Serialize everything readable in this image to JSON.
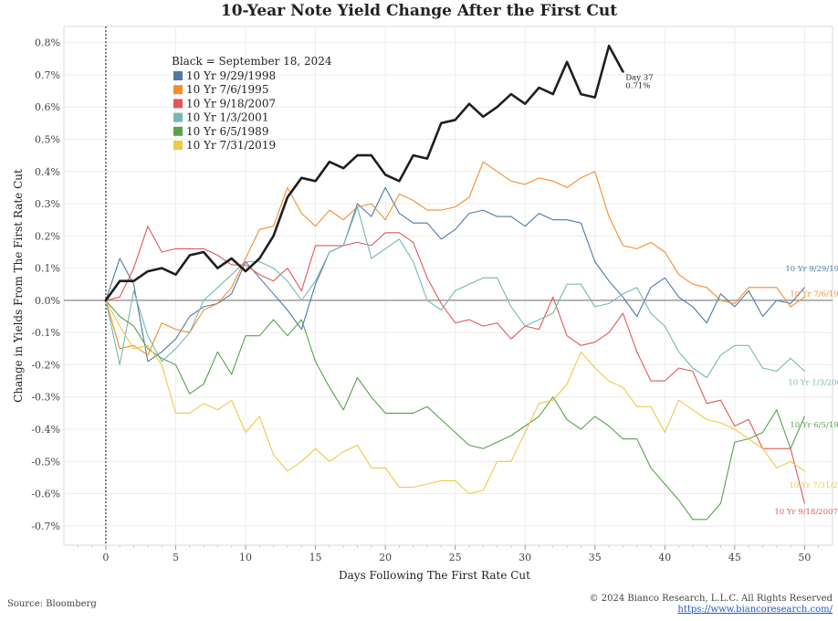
{
  "chart_data": {
    "type": "line",
    "title": "10-Year Note Yield Change After the First Cut",
    "xlabel": "Days Following The First Rate Cut",
    "ylabel": "Change in Yields From The First Rate Cut",
    "xlim": [
      -3,
      52
    ],
    "ylim": [
      -0.76,
      0.85
    ],
    "x_ticks": [
      0,
      5,
      10,
      15,
      20,
      25,
      30,
      35,
      40,
      45,
      50
    ],
    "y_ticks": [
      -0.7,
      -0.6,
      -0.5,
      -0.4,
      -0.3,
      -0.2,
      -0.1,
      0.0,
      0.1,
      0.2,
      0.3,
      0.4,
      0.5,
      0.6,
      0.7,
      0.8
    ],
    "y_tick_labels": [
      "-0.7%",
      "-0.6%",
      "-0.5%",
      "-0.4%",
      "-0.3%",
      "-0.2%",
      "-0.1%",
      "0.0%",
      "0.1%",
      "0.2%",
      "0.3%",
      "0.4%",
      "0.5%",
      "0.6%",
      "0.7%",
      "0.8%"
    ],
    "legend_header": "Black = September 18, 2024",
    "legend_placement": "top-left",
    "grid": true,
    "annotation": {
      "text": "Day 37",
      "value_text": "0.71%",
      "x": 37,
      "y": 0.71
    },
    "series": [
      {
        "name": "10 Yr 9/29/1998",
        "label": "10 Yr 9/29/1998",
        "color": "#4e79a7",
        "legend": true,
        "values": [
          0,
          0.13,
          0.05,
          -0.19,
          -0.16,
          -0.12,
          -0.05,
          -0.02,
          -0.01,
          0.02,
          0.12,
          0.07,
          0.02,
          -0.03,
          -0.09,
          0.05,
          0.15,
          0.17,
          0.3,
          0.26,
          0.35,
          0.27,
          0.24,
          0.24,
          0.19,
          0.22,
          0.27,
          0.28,
          0.26,
          0.26,
          0.23,
          0.27,
          0.25,
          0.25,
          0.24,
          0.12,
          0.06,
          0.01,
          -0.05,
          0.04,
          0.07,
          0.01,
          -0.02,
          -0.07,
          0.02,
          -0.02,
          0.03,
          -0.05,
          0,
          -0.01,
          0.04
        ]
      },
      {
        "name": "10 Yr 7/6/1995",
        "label": "10 Yr 7/6/1995",
        "color": "#f28e2b",
        "legend": true,
        "values": [
          0,
          -0.15,
          -0.14,
          -0.17,
          -0.07,
          -0.09,
          -0.1,
          -0.03,
          -0.01,
          0.04,
          0.13,
          0.22,
          0.23,
          0.35,
          0.27,
          0.23,
          0.28,
          0.25,
          0.29,
          0.3,
          0.25,
          0.33,
          0.31,
          0.28,
          0.28,
          0.29,
          0.32,
          0.43,
          0.4,
          0.37,
          0.36,
          0.38,
          0.37,
          0.35,
          0.38,
          0.4,
          0.26,
          0.17,
          0.16,
          0.18,
          0.15,
          0.08,
          0.05,
          0.04,
          0,
          -0.01,
          0.04,
          0.04,
          0.04,
          -0.02,
          0.01
        ]
      },
      {
        "name": "10 Yr 9/18/2007",
        "label": "10 Yr 9/18/2007",
        "color": "#e15759",
        "legend": true,
        "values": [
          0,
          0.01,
          0.1,
          0.23,
          0.15,
          0.16,
          0.16,
          0.16,
          0.14,
          0.11,
          0.11,
          0.08,
          0.06,
          0.1,
          0.03,
          0.17,
          0.17,
          0.17,
          0.18,
          0.17,
          0.21,
          0.21,
          0.18,
          0.07,
          -0.01,
          -0.07,
          -0.06,
          -0.08,
          -0.07,
          -0.12,
          -0.08,
          -0.09,
          0.01,
          -0.11,
          -0.14,
          -0.13,
          -0.1,
          -0.04,
          -0.16,
          -0.25,
          -0.25,
          -0.21,
          -0.22,
          -0.32,
          -0.31,
          -0.39,
          -0.37,
          -0.46,
          -0.46,
          -0.46,
          -0.63
        ]
      },
      {
        "name": "10 Yr 1/3/2001",
        "label": "10 Yr 1/3/2001",
        "color": "#76b7b2",
        "legend": true,
        "values": [
          0,
          -0.2,
          0.03,
          -0.11,
          -0.19,
          -0.15,
          -0.1,
          0.0,
          0.04,
          0.08,
          0.12,
          0.12,
          0.1,
          0.06,
          0.0,
          0.06,
          0.15,
          0.17,
          0.29,
          0.13,
          0.16,
          0.19,
          0.12,
          0.0,
          -0.03,
          0.03,
          0.05,
          0.07,
          0.07,
          -0.02,
          -0.08,
          -0.06,
          -0.04,
          0.05,
          0.05,
          -0.02,
          -0.01,
          0.02,
          0.04,
          -0.04,
          -0.08,
          -0.16,
          -0.21,
          -0.24,
          -0.17,
          -0.14,
          -0.14,
          -0.21,
          -0.22,
          -0.18,
          -0.22
        ]
      },
      {
        "name": "10 Yr 6/5/1989",
        "label": "10 Yr 6/5/1989",
        "color": "#59a14f",
        "legend": true,
        "values": [
          0,
          -0.05,
          -0.08,
          -0.15,
          -0.18,
          -0.2,
          -0.29,
          -0.26,
          -0.16,
          -0.23,
          -0.11,
          -0.11,
          -0.06,
          -0.11,
          -0.06,
          -0.19,
          -0.27,
          -0.34,
          -0.24,
          -0.3,
          -0.35,
          -0.35,
          -0.35,
          -0.33,
          -0.37,
          -0.41,
          -0.45,
          -0.46,
          -0.44,
          -0.42,
          -0.39,
          -0.36,
          -0.3,
          -0.37,
          -0.4,
          -0.36,
          -0.39,
          -0.43,
          -0.43,
          -0.52,
          -0.57,
          -0.62,
          -0.68,
          -0.68,
          -0.63,
          -0.44,
          -0.43,
          -0.41,
          -0.34,
          -0.46,
          -0.36
        ]
      },
      {
        "name": "10 Yr 7/31/2019",
        "label": "10 Yr 7/31/2019",
        "color": "#edc948",
        "legend": true,
        "values": [
          0,
          -0.08,
          -0.15,
          -0.14,
          -0.2,
          -0.35,
          -0.35,
          -0.32,
          -0.34,
          -0.31,
          -0.41,
          -0.36,
          -0.48,
          -0.53,
          -0.5,
          -0.46,
          -0.5,
          -0.47,
          -0.45,
          -0.52,
          -0.52,
          -0.58,
          -0.58,
          -0.57,
          -0.56,
          -0.56,
          -0.6,
          -0.59,
          -0.5,
          -0.5,
          -0.41,
          -0.32,
          -0.31,
          -0.26,
          -0.16,
          -0.21,
          -0.25,
          -0.27,
          -0.33,
          -0.33,
          -0.41,
          -0.31,
          -0.34,
          -0.37,
          -0.38,
          -0.4,
          -0.43,
          -0.46,
          -0.52,
          -0.5,
          -0.53
        ]
      },
      {
        "name": "September 18, 2024",
        "label": "",
        "color": "#1f1f1f",
        "legend": false,
        "values": [
          0,
          0.06,
          0.06,
          0.09,
          0.1,
          0.08,
          0.14,
          0.15,
          0.1,
          0.13,
          0.09,
          0.13,
          0.2,
          0.32,
          0.38,
          0.37,
          0.43,
          0.41,
          0.45,
          0.45,
          0.39,
          0.37,
          0.45,
          0.44,
          0.55,
          0.56,
          0.61,
          0.57,
          0.6,
          0.64,
          0.61,
          0.66,
          0.64,
          0.74,
          0.64,
          0.63,
          0.79,
          0.71
        ]
      }
    ]
  },
  "footer": {
    "source": "Source: Bloomberg",
    "copyright": "© 2024 Bianco Research, L.L.C. All Rights Reserved",
    "website": "https://www.biancoresearch.com/"
  }
}
